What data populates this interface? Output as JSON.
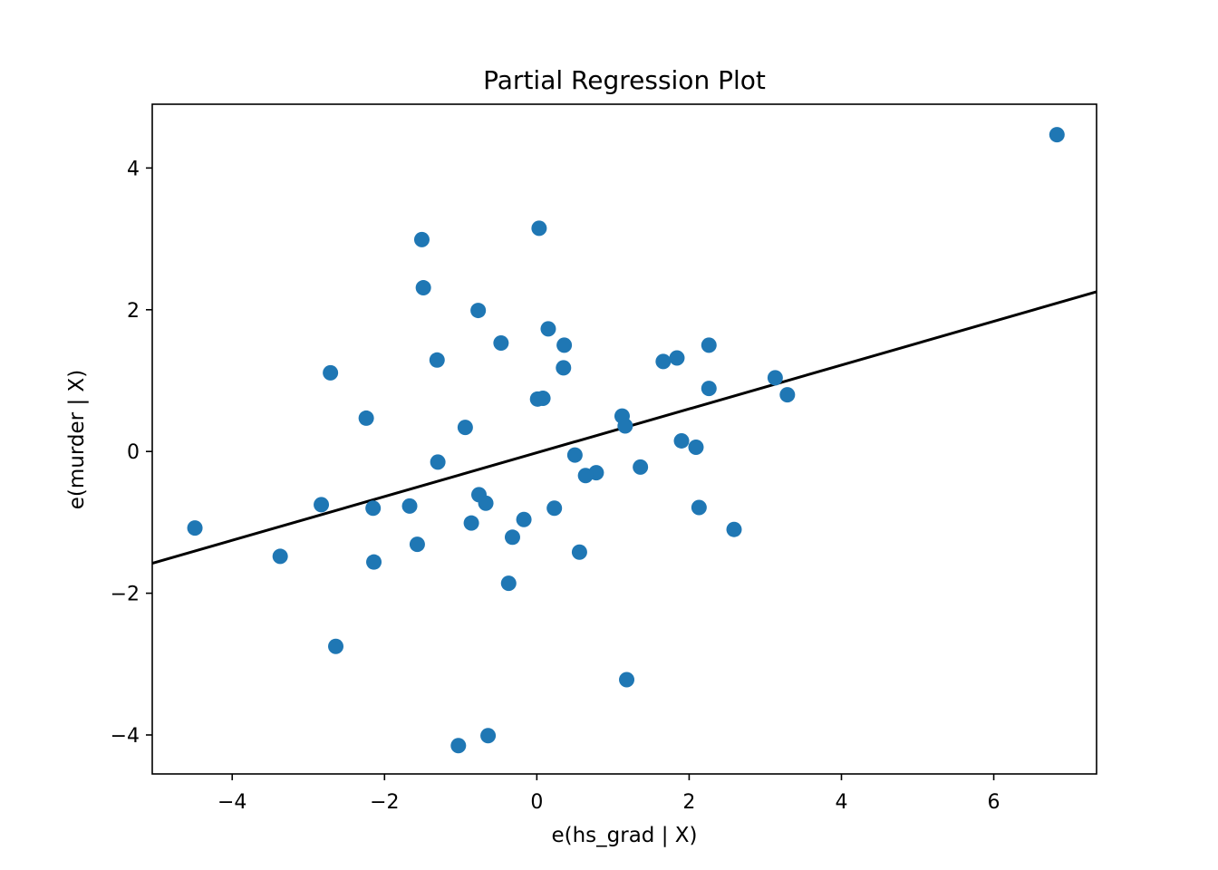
{
  "chart_data": {
    "type": "scatter",
    "title": "Partial Regression Plot",
    "xlabel": "e(hs_grad | X)",
    "ylabel": "e(murder | X)",
    "xlim": [
      -5.05,
      7.35
    ],
    "ylim": [
      -4.55,
      4.9
    ],
    "xticks": [
      -4,
      -2,
      0,
      2,
      4,
      6
    ],
    "yticks": [
      -4,
      -2,
      0,
      2,
      4
    ],
    "xtick_labels": [
      "−4",
      "−2",
      "0",
      "2",
      "4",
      "6"
    ],
    "ytick_labels": [
      "−4",
      "−2",
      "0",
      "2",
      "4"
    ],
    "grid": false,
    "point_color": "#1f77b4",
    "line_color": "#000000",
    "fit_line": {
      "intercept": -0.0174,
      "slope": 0.309
    },
    "points": [
      {
        "x": 6.83,
        "y": 4.47
      },
      {
        "x": 0.03,
        "y": 3.15
      },
      {
        "x": -1.51,
        "y": 2.99
      },
      {
        "x": -1.49,
        "y": 2.31
      },
      {
        "x": -0.77,
        "y": 1.99
      },
      {
        "x": 0.15,
        "y": 1.73
      },
      {
        "x": -0.47,
        "y": 1.53
      },
      {
        "x": 0.36,
        "y": 1.5
      },
      {
        "x": 2.26,
        "y": 1.5
      },
      {
        "x": 1.84,
        "y": 1.32
      },
      {
        "x": -1.31,
        "y": 1.29
      },
      {
        "x": 1.66,
        "y": 1.27
      },
      {
        "x": 0.35,
        "y": 1.18
      },
      {
        "x": -2.71,
        "y": 1.11
      },
      {
        "x": 3.13,
        "y": 1.04
      },
      {
        "x": 2.26,
        "y": 0.89
      },
      {
        "x": 3.29,
        "y": 0.8
      },
      {
        "x": 0.08,
        "y": 0.75
      },
      {
        "x": 0.01,
        "y": 0.74
      },
      {
        "x": 1.12,
        "y": 0.5
      },
      {
        "x": -2.24,
        "y": 0.47
      },
      {
        "x": 1.16,
        "y": 0.36
      },
      {
        "x": -0.94,
        "y": 0.34
      },
      {
        "x": 1.9,
        "y": 0.15
      },
      {
        "x": 2.09,
        "y": 0.06
      },
      {
        "x": 0.5,
        "y": -0.05
      },
      {
        "x": -1.3,
        "y": -0.15
      },
      {
        "x": 1.36,
        "y": -0.22
      },
      {
        "x": 0.78,
        "y": -0.3
      },
      {
        "x": 0.64,
        "y": -0.34
      },
      {
        "x": -0.76,
        "y": -0.61
      },
      {
        "x": -0.67,
        "y": -0.73
      },
      {
        "x": -2.83,
        "y": -0.75
      },
      {
        "x": -1.67,
        "y": -0.77
      },
      {
        "x": 2.13,
        "y": -0.79
      },
      {
        "x": -2.15,
        "y": -0.8
      },
      {
        "x": 0.23,
        "y": -0.8
      },
      {
        "x": -0.17,
        "y": -0.96
      },
      {
        "x": -0.86,
        "y": -1.01
      },
      {
        "x": -4.49,
        "y": -1.08
      },
      {
        "x": 2.59,
        "y": -1.1
      },
      {
        "x": -0.32,
        "y": -1.21
      },
      {
        "x": -1.57,
        "y": -1.31
      },
      {
        "x": 0.56,
        "y": -1.42
      },
      {
        "x": -3.37,
        "y": -1.48
      },
      {
        "x": -2.14,
        "y": -1.56
      },
      {
        "x": -0.37,
        "y": -1.86
      },
      {
        "x": -2.64,
        "y": -2.75
      },
      {
        "x": 1.18,
        "y": -3.22
      },
      {
        "x": -0.64,
        "y": -4.01
      },
      {
        "x": -1.03,
        "y": -4.15
      }
    ]
  }
}
